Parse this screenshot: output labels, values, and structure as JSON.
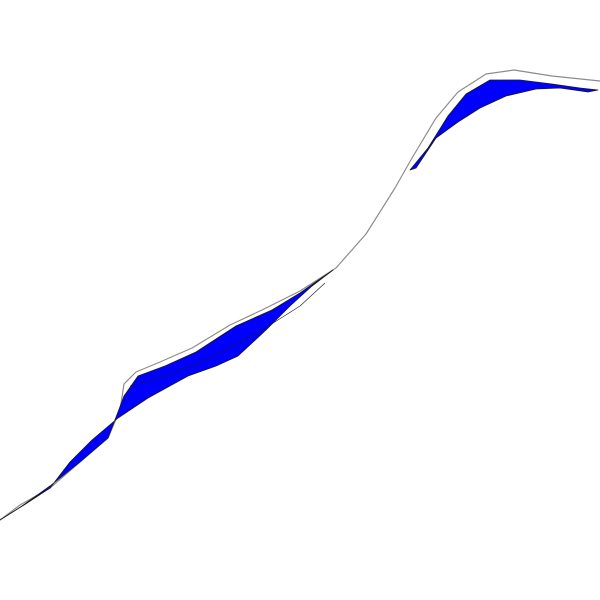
{
  "map": {
    "background_color": "#ffffff",
    "outline_color": "#8c8c8c",
    "water_fill_color": "#0000ff",
    "water_stroke_color": "#1a1a1a",
    "features": [
      {
        "name": "river-outline",
        "kind": "outline"
      },
      {
        "name": "water-body-lower",
        "kind": "water"
      },
      {
        "name": "water-body-upper",
        "kind": "water"
      }
    ]
  }
}
